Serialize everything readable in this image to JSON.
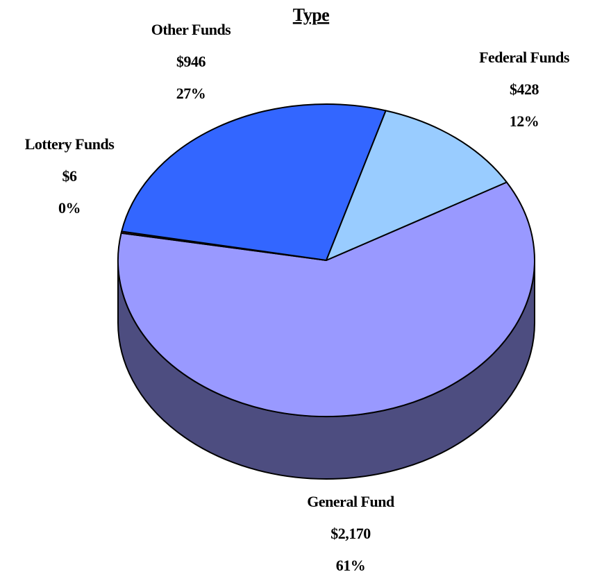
{
  "chart_data": {
    "type": "pie3d",
    "title": "Type",
    "categories": [
      "General Fund",
      "Lottery Funds",
      "Other Funds",
      "Federal Funds"
    ],
    "values": [
      2170,
      6,
      946,
      428
    ],
    "value_labels": [
      "$2,170",
      "$6",
      "$946",
      "$428"
    ],
    "percent_labels": [
      "61%",
      "0%",
      "27%",
      "12%"
    ],
    "colors": [
      "#9999ff",
      "#993366",
      "#3366ff",
      "#99ccff"
    ],
    "side_color": "#4d4d80"
  }
}
